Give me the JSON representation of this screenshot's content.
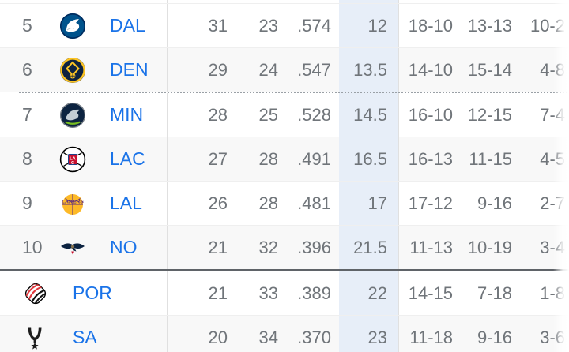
{
  "widget": {
    "name": "NBA Western Conference standings (partial view)",
    "colors": {
      "team_link": "#1a73e8",
      "stat_text": "#70757a",
      "gb_column_highlight": "#e7eef8",
      "row_alternate": "#f8f8f8",
      "column_divider": "#e0e0e0",
      "dotted_cutoff": "#9aa0a6",
      "solid_cutoff": "#5f6368"
    }
  },
  "rows": [
    {
      "rank": "5",
      "team": "DAL",
      "logo": "dallas-mavericks",
      "stats": [
        "31",
        "23",
        ".574",
        "12",
        "18-10",
        "13-13",
        "10-2"
      ],
      "divider_after": "line"
    },
    {
      "rank": "6",
      "team": "DEN",
      "logo": "denver-nuggets",
      "stats": [
        "29",
        "24",
        ".547",
        "13.5",
        "14-10",
        "15-14",
        "4-8"
      ],
      "divider_after": "dotted"
    },
    {
      "rank": "7",
      "team": "MIN",
      "logo": "minnesota-timberwolves",
      "stats": [
        "28",
        "25",
        ".528",
        "14.5",
        "16-10",
        "12-15",
        "7-4"
      ],
      "divider_after": "line"
    },
    {
      "rank": "8",
      "team": "LAC",
      "logo": "la-clippers",
      "stats": [
        "27",
        "28",
        ".491",
        "16.5",
        "16-13",
        "11-15",
        "4-5"
      ],
      "divider_after": "line"
    },
    {
      "rank": "9",
      "team": "LAL",
      "logo": "los-angeles-lakers",
      "stats": [
        "26",
        "28",
        ".481",
        "17",
        "17-12",
        "9-16",
        "2-7"
      ],
      "divider_after": "line"
    },
    {
      "rank": "10",
      "team": "NO",
      "logo": "new-orleans-pelicans",
      "stats": [
        "21",
        "32",
        ".396",
        "21.5",
        "11-13",
        "10-19",
        "3-4"
      ],
      "divider_after": "solid"
    },
    {
      "rank": "",
      "team": "POR",
      "logo": "portland-trail-blazers",
      "stats": [
        "21",
        "33",
        ".389",
        "22",
        "14-15",
        "7-18",
        "1-8"
      ],
      "divider_after": "line"
    },
    {
      "rank": "",
      "team": "SA",
      "logo": "san-antonio-spurs",
      "stats": [
        "20",
        "34",
        ".370",
        "23",
        "11-18",
        "9-16",
        "3-6"
      ],
      "divider_after": "none"
    }
  ]
}
